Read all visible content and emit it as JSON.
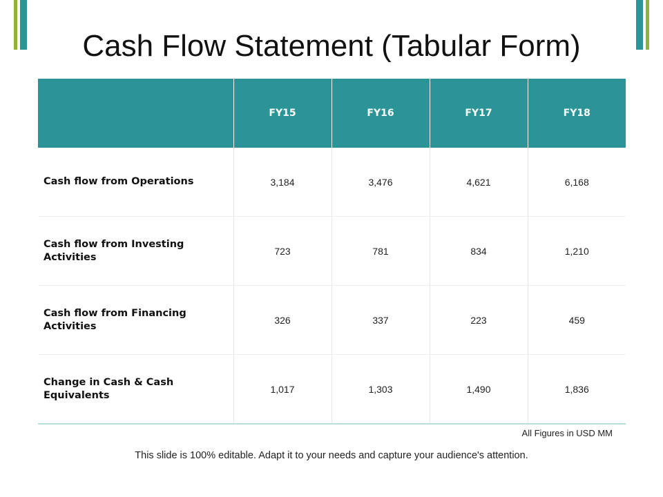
{
  "title": "Cash Flow Statement (Tabular Form)",
  "table": {
    "headers": [
      "",
      "FY15",
      "FY16",
      "FY17",
      "FY18"
    ],
    "rows": [
      {
        "label": "Cash flow from Operations",
        "values": [
          "3,184",
          "3,476",
          "4,621",
          "6,168"
        ]
      },
      {
        "label": "Cash flow from Investing Activities",
        "values": [
          "723",
          "781",
          "834",
          "1,210"
        ]
      },
      {
        "label": "Cash flow from Financing Activities",
        "values": [
          "326",
          "337",
          "223",
          "459"
        ]
      },
      {
        "label": "Change in Cash & Cash Equivalents",
        "values": [
          "1,017",
          "1,303",
          "1,490",
          "1,836"
        ]
      }
    ]
  },
  "note": "All Figures in USD MM",
  "footer": "This slide is 100% editable. Adapt it to your needs and capture your audience's attention.",
  "colors": {
    "header_bg": "#2a9497",
    "accent_green": "#8fb33a",
    "accent_teal": "#2a9497"
  }
}
